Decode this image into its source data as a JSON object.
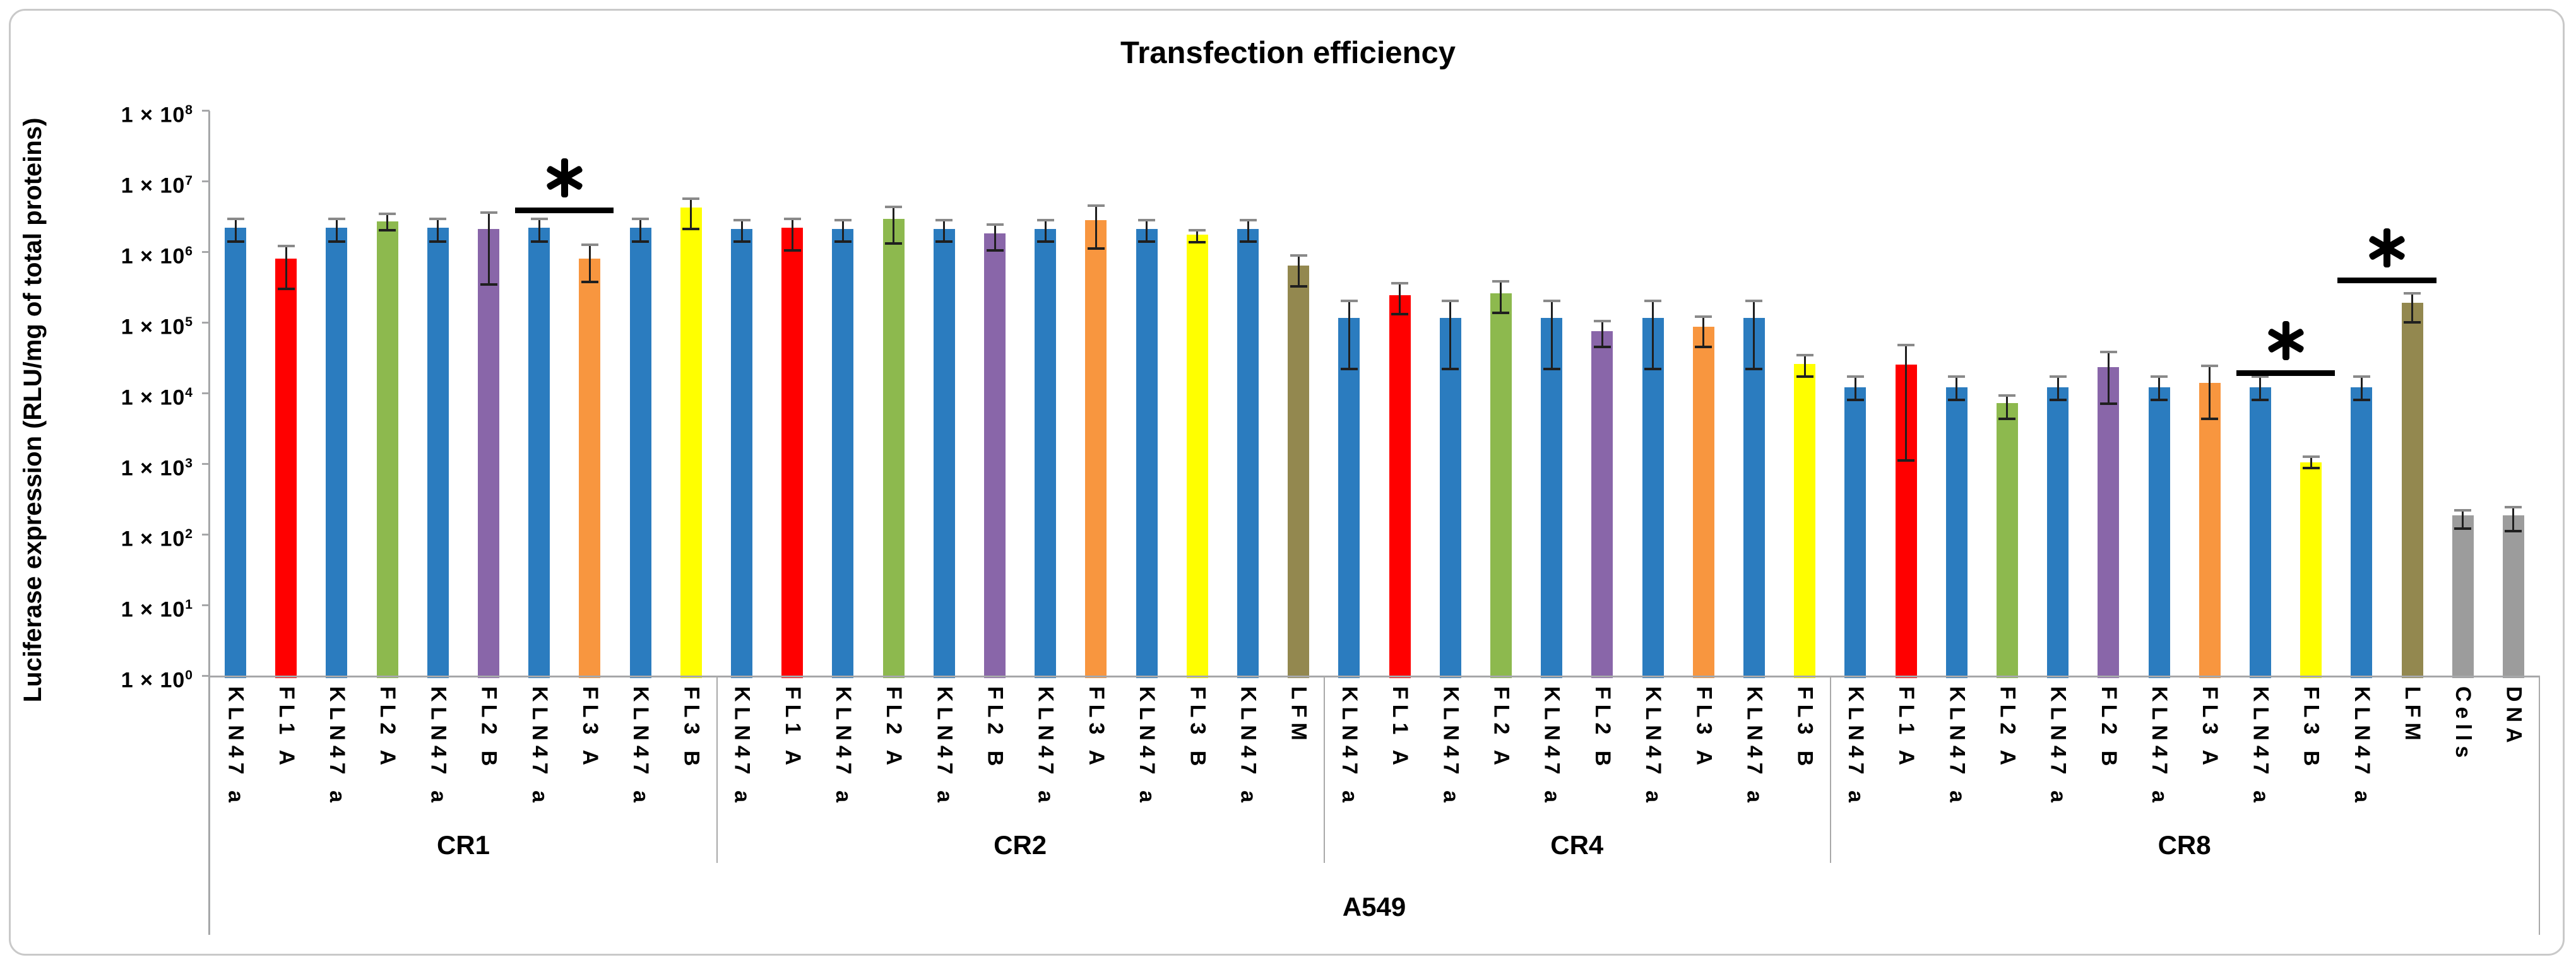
{
  "title": "Transfection efficiency",
  "chart_data": {
    "type": "bar",
    "title": "Transfection efficiency",
    "ylabel": "Luciferase expression (RLU/mg of total proteins)",
    "xlabel": "A549",
    "y_scale": "log10",
    "ylim": [
      1,
      100000000
    ],
    "grid": false,
    "legend": false,
    "y_tick_prefix": "1 × 10",
    "y_tick_exponents": [
      8,
      7,
      6,
      5,
      4,
      3,
      2,
      1,
      0
    ],
    "axis_color": "#A6A7A9",
    "divider_color": "#A9A9A9",
    "error_bar_colors": {
      "line": "#1F1F1F",
      "cap_top": "#8A8A8A",
      "cap_bottom": "#1F1F1F"
    },
    "series_colors": {
      "KLN47 a": "#2B7CBF",
      "FL1 A": "#FF0000",
      "FL2 A": "#8DB94E",
      "FL2 B": "#8966A9",
      "FL3 A": "#F8963F",
      "FL3 B": "#FFFF00",
      "LFM": "#93884F",
      "Cells": "#9C9C9C",
      "DNA": "#9C9C9C"
    },
    "groups": [
      {
        "name": "CR1",
        "bars": [
          {
            "label": "KLN47 a",
            "value": 2200000,
            "err_lo": 1400000,
            "err_hi": 2900000
          },
          {
            "label": "FL1 A",
            "value": 800000,
            "err_lo": 300000,
            "err_hi": 1200000
          },
          {
            "label": "KLN47 a",
            "value": 2200000,
            "err_lo": 1400000,
            "err_hi": 2900000
          },
          {
            "label": "FL2 A",
            "value": 2700000,
            "err_lo": 2000000,
            "err_hi": 3400000
          },
          {
            "label": "KLN47 a",
            "value": 2200000,
            "err_lo": 1400000,
            "err_hi": 2900000
          },
          {
            "label": "FL2 B",
            "value": 2100000,
            "err_lo": 340000,
            "err_hi": 3600000
          },
          {
            "label": "KLN47 a",
            "value": 2200000,
            "err_lo": 1400000,
            "err_hi": 2900000
          },
          {
            "label": "FL3 A",
            "value": 800000,
            "err_lo": 370000,
            "err_hi": 1250000
          },
          {
            "label": "KLN47 a",
            "value": 2200000,
            "err_lo": 1400000,
            "err_hi": 2900000
          },
          {
            "label": "FL3 B",
            "value": 4200000,
            "err_lo": 2100000,
            "err_hi": 5600000
          }
        ]
      },
      {
        "name": "CR2",
        "bars": [
          {
            "label": "KLN47 a",
            "value": 2100000,
            "err_lo": 1400000,
            "err_hi": 2800000
          },
          {
            "label": "FL1 A",
            "value": 2200000,
            "err_lo": 1050000,
            "err_hi": 2900000
          },
          {
            "label": "KLN47 a",
            "value": 2100000,
            "err_lo": 1400000,
            "err_hi": 2800000
          },
          {
            "label": "FL2 A",
            "value": 2900000,
            "err_lo": 1300000,
            "err_hi": 4300000
          },
          {
            "label": "KLN47 a",
            "value": 2100000,
            "err_lo": 1400000,
            "err_hi": 2800000
          },
          {
            "label": "FL2 B",
            "value": 1800000,
            "err_lo": 1050000,
            "err_hi": 2400000
          },
          {
            "label": "KLN47 a",
            "value": 2100000,
            "err_lo": 1400000,
            "err_hi": 2800000
          },
          {
            "label": "FL3 A",
            "value": 2800000,
            "err_lo": 1100000,
            "err_hi": 4500000
          },
          {
            "label": "KLN47 a",
            "value": 2100000,
            "err_lo": 1400000,
            "err_hi": 2800000
          },
          {
            "label": "FL3 B",
            "value": 1750000,
            "err_lo": 1350000,
            "err_hi": 2000000
          },
          {
            "label": "KLN47 a",
            "value": 2100000,
            "err_lo": 1400000,
            "err_hi": 2800000
          },
          {
            "label": "LFM",
            "value": 630000,
            "err_lo": 320000,
            "err_hi": 880000
          }
        ]
      },
      {
        "name": "CR4",
        "bars": [
          {
            "label": "KLN47 a",
            "value": 115000,
            "err_lo": 22000,
            "err_hi": 200000
          },
          {
            "label": "FL1 A",
            "value": 240000,
            "err_lo": 130000,
            "err_hi": 360000
          },
          {
            "label": "KLN47 a",
            "value": 115000,
            "err_lo": 22000,
            "err_hi": 200000
          },
          {
            "label": "FL2 A",
            "value": 260000,
            "err_lo": 135000,
            "err_hi": 380000
          },
          {
            "label": "KLN47 a",
            "value": 115000,
            "err_lo": 22000,
            "err_hi": 200000
          },
          {
            "label": "FL2 B",
            "value": 75000,
            "err_lo": 45000,
            "err_hi": 105000
          },
          {
            "label": "KLN47 a",
            "value": 115000,
            "err_lo": 22000,
            "err_hi": 200000
          },
          {
            "label": "FL3 A",
            "value": 87000,
            "err_lo": 45000,
            "err_hi": 120000
          },
          {
            "label": "KLN47 a",
            "value": 115000,
            "err_lo": 22000,
            "err_hi": 200000
          },
          {
            "label": "FL3 B",
            "value": 26000,
            "err_lo": 17000,
            "err_hi": 34000
          }
        ]
      },
      {
        "name": "CR8",
        "bars": [
          {
            "label": "KLN47 a",
            "value": 12000,
            "err_lo": 8000,
            "err_hi": 17000
          },
          {
            "label": "FL1 A",
            "value": 25000,
            "err_lo": 1100,
            "err_hi": 48000
          },
          {
            "label": "KLN47 a",
            "value": 12000,
            "err_lo": 8000,
            "err_hi": 17000
          },
          {
            "label": "FL2 A",
            "value": 7200,
            "err_lo": 4300,
            "err_hi": 9300
          },
          {
            "label": "KLN47 a",
            "value": 12000,
            "err_lo": 8000,
            "err_hi": 17000
          },
          {
            "label": "FL2 B",
            "value": 23000,
            "err_lo": 7000,
            "err_hi": 38000
          },
          {
            "label": "KLN47 a",
            "value": 12000,
            "err_lo": 8000,
            "err_hi": 17000
          },
          {
            "label": "FL3 A",
            "value": 14000,
            "err_lo": 4300,
            "err_hi": 24000
          },
          {
            "label": "KLN47 a",
            "value": 12000,
            "err_lo": 8000,
            "err_hi": 17000
          },
          {
            "label": "FL3 B",
            "value": 1050,
            "err_lo": 860,
            "err_hi": 1250
          },
          {
            "label": "KLN47 a",
            "value": 12000,
            "err_lo": 8000,
            "err_hi": 17000
          },
          {
            "label": "LFM",
            "value": 190000,
            "err_lo": 100000,
            "err_hi": 260000
          },
          {
            "label": "Cells",
            "value": 185,
            "err_lo": 120,
            "err_hi": 220
          },
          {
            "label": "DNA",
            "value": 185,
            "err_lo": 110,
            "err_hi": 240
          }
        ]
      }
    ],
    "significance_markers": [
      {
        "symbol": "*",
        "group": "CR1",
        "bar_global_indexes": [
          6,
          7
        ],
        "line_value": 4200000
      },
      {
        "symbol": "*",
        "group": "CR8",
        "bar_global_indexes": [
          40,
          41
        ],
        "line_value": 21000
      },
      {
        "symbol": "*",
        "group": "CR8",
        "bar_global_indexes": [
          42,
          43
        ],
        "line_value": 430000
      }
    ]
  }
}
